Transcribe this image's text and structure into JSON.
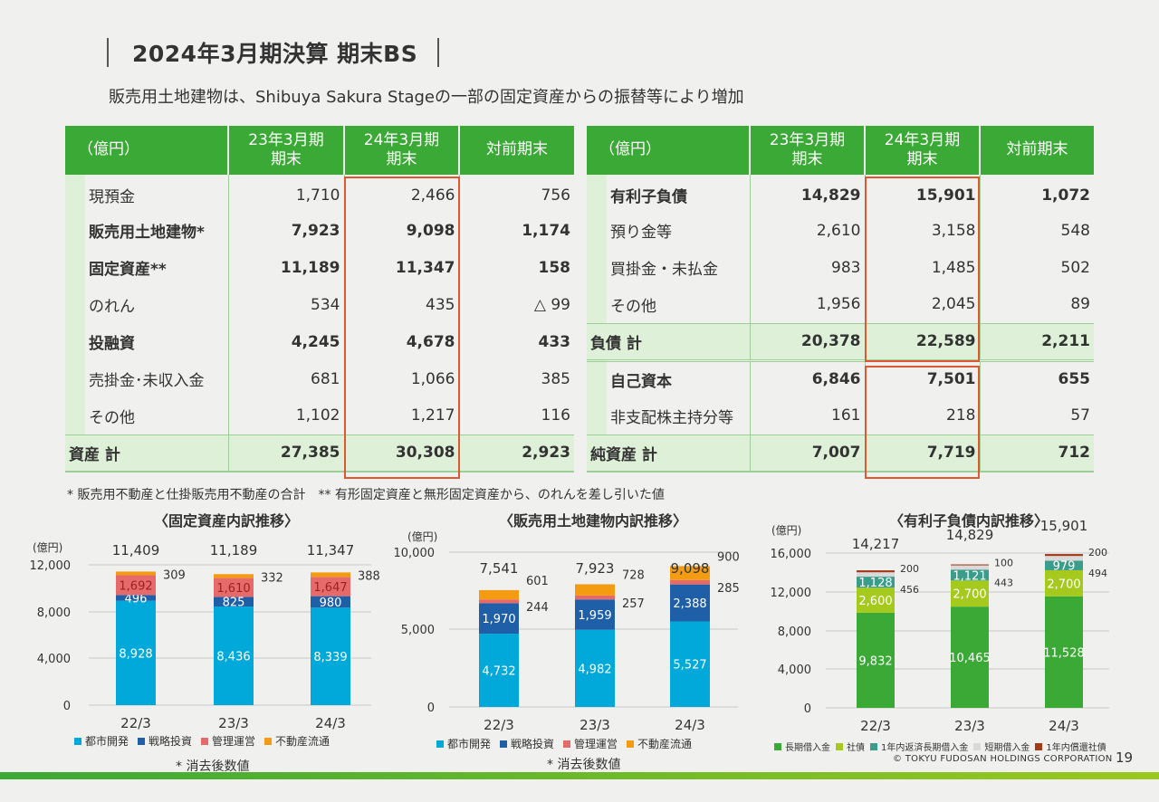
{
  "header": {
    "title": "2024年3月期決算 期末BS",
    "subtitle": "販売用土地建物は、Shibuya Sakura Stageの一部の固定資産からの振替等により増加"
  },
  "assets_table": {
    "unit": "（億円）",
    "col1": "23年3月期\n期末",
    "col2": "24年3月期\n期末",
    "col3": "対前期末",
    "rows": [
      {
        "label": "現預金",
        "v1": "1,710",
        "v2": "2,466",
        "v3": "756"
      },
      {
        "label": "販売用土地建物*",
        "v1": "7,923",
        "v2": "9,098",
        "v3": "1,174"
      },
      {
        "label": "固定資産**",
        "v1": "11,189",
        "v2": "11,347",
        "v3": "158"
      },
      {
        "label": "のれん",
        "v1": "534",
        "v2": "435",
        "v3": "△ 99"
      },
      {
        "label": "投融資",
        "v1": "4,245",
        "v2": "4,678",
        "v3": "433"
      },
      {
        "label": "売掛金･未収入金",
        "v1": "681",
        "v2": "1,066",
        "v3": "385"
      },
      {
        "label": "その他",
        "v1": "1,102",
        "v2": "1,217",
        "v3": "116"
      },
      {
        "label": "資産 計",
        "v1": "27,385",
        "v2": "30,308",
        "v3": "2,923"
      }
    ]
  },
  "liab_table": {
    "unit": "（億円）",
    "col1": "23年3月期\n期末",
    "col2": "24年3月期\n期末",
    "col3": "対前期末",
    "rows": [
      {
        "label": "有利子負債",
        "v1": "14,829",
        "v2": "15,901",
        "v3": "1,072"
      },
      {
        "label": "預り金等",
        "v1": "2,610",
        "v2": "3,158",
        "v3": "548"
      },
      {
        "label": "買掛金・未払金",
        "v1": "983",
        "v2": "1,485",
        "v3": "502"
      },
      {
        "label": "その他",
        "v1": "1,956",
        "v2": "2,045",
        "v3": "89"
      },
      {
        "label": "負債 計",
        "v1": "20,378",
        "v2": "22,589",
        "v3": "2,211"
      },
      {
        "label": "自己資本",
        "v1": "6,846",
        "v2": "7,501",
        "v3": "655"
      },
      {
        "label": "非支配株主持分等",
        "v1": "161",
        "v2": "218",
        "v3": "57"
      },
      {
        "label": "純資産 計",
        "v1": "7,007",
        "v2": "7,719",
        "v3": "712"
      }
    ]
  },
  "notes": "* 販売用不動産と仕掛販売用不動産の合計　** 有形固定資産と無形固定資産から、のれんを差し引いた値",
  "chart_data": [
    {
      "type": "bar",
      "title": "〈固定資産内訳推移〉",
      "unit": "(億円)",
      "categories": [
        "22/3",
        "23/3",
        "24/3"
      ],
      "totals": [
        "11,409",
        "11,189",
        "11,347"
      ],
      "ylim": [
        0,
        12000
      ],
      "yticks": [
        "0",
        "4,000",
        "8,000",
        "12,000"
      ],
      "series": [
        {
          "name": "都市開発",
          "values": [
            8928,
            8436,
            8339
          ],
          "labels": [
            "8,928",
            "8,436",
            "8,339"
          ],
          "color": "#00a9d9"
        },
        {
          "name": "戦略投資",
          "values": [
            496,
            825,
            980
          ],
          "labels": [
            "496",
            "825",
            "980"
          ],
          "color": "#1f5fa8"
        },
        {
          "name": "管理運営",
          "values": [
            1692,
            1610,
            1647
          ],
          "labels": [
            "1,692",
            "1,610",
            "1,647"
          ],
          "color": "#e66a6a"
        },
        {
          "name": "不動産流通",
          "values": [
            309,
            332,
            388
          ],
          "labels": [
            "309",
            "332",
            "388"
          ],
          "color": "#f39c12"
        }
      ],
      "note": "* 消去後数値"
    },
    {
      "type": "bar",
      "title": "〈販売用土地建物内訳推移〉",
      "unit": "(億円)",
      "categories": [
        "22/3",
        "23/3",
        "24/3"
      ],
      "totals": [
        "7,541",
        "7,923",
        "9,098"
      ],
      "ylim": [
        0,
        10000
      ],
      "yticks": [
        "0",
        "5,000",
        "10,000"
      ],
      "series": [
        {
          "name": "都市開発",
          "values": [
            4732,
            4982,
            5527
          ],
          "labels": [
            "4,732",
            "4,982",
            "5,527"
          ],
          "color": "#00a9d9"
        },
        {
          "name": "戦略投資",
          "values": [
            1970,
            1959,
            2388
          ],
          "labels": [
            "1,970",
            "1,959",
            "2,388"
          ],
          "color": "#1f5fa8"
        },
        {
          "name": "管理運営",
          "values": [
            244,
            257,
            285
          ],
          "labels": [
            "244",
            "257",
            "285"
          ],
          "color": "#e66a6a"
        },
        {
          "name": "不動産流通",
          "values": [
            601,
            728,
            900
          ],
          "labels": [
            "601",
            "728",
            "900"
          ],
          "color": "#f39c12"
        }
      ],
      "note": "* 消去後数値"
    },
    {
      "type": "bar",
      "title": "〈有利子負債内訳推移〉",
      "unit": "(億円)",
      "categories": [
        "22/3",
        "23/3",
        "24/3"
      ],
      "totals": [
        "14,217",
        "14,829",
        "15,901"
      ],
      "ylim": [
        0,
        16000
      ],
      "yticks": [
        "0",
        "4,000",
        "8,000",
        "12,000",
        "16,000"
      ],
      "series": [
        {
          "name": "長期借入金",
          "values": [
            9832,
            10465,
            11528
          ],
          "labels": [
            "9,832",
            "10,465",
            "11,528"
          ],
          "color": "#3aa935"
        },
        {
          "name": "社債",
          "values": [
            2600,
            2700,
            2700
          ],
          "labels": [
            "2,600",
            "2,700",
            "2,700"
          ],
          "color": "#a6c91d"
        },
        {
          "name": "1年内返済長期借入金",
          "values": [
            1128,
            1121,
            979
          ],
          "labels": [
            "1,128",
            "1,121",
            "979"
          ],
          "color": "#3a9c8a"
        },
        {
          "name": "短期借入金",
          "values": [
            456,
            443,
            494
          ],
          "labels": [
            "456",
            "443",
            "494"
          ],
          "color": "#d9d9d9"
        },
        {
          "name": "1年内償還社債",
          "values": [
            200,
            100,
            200
          ],
          "labels": [
            "200",
            "100",
            "200"
          ],
          "color": "#a33a1a"
        }
      ]
    }
  ],
  "footer": {
    "copyright": "© TOKYU FUDOSAN HOLDINGS CORPORATION",
    "page": "19"
  }
}
